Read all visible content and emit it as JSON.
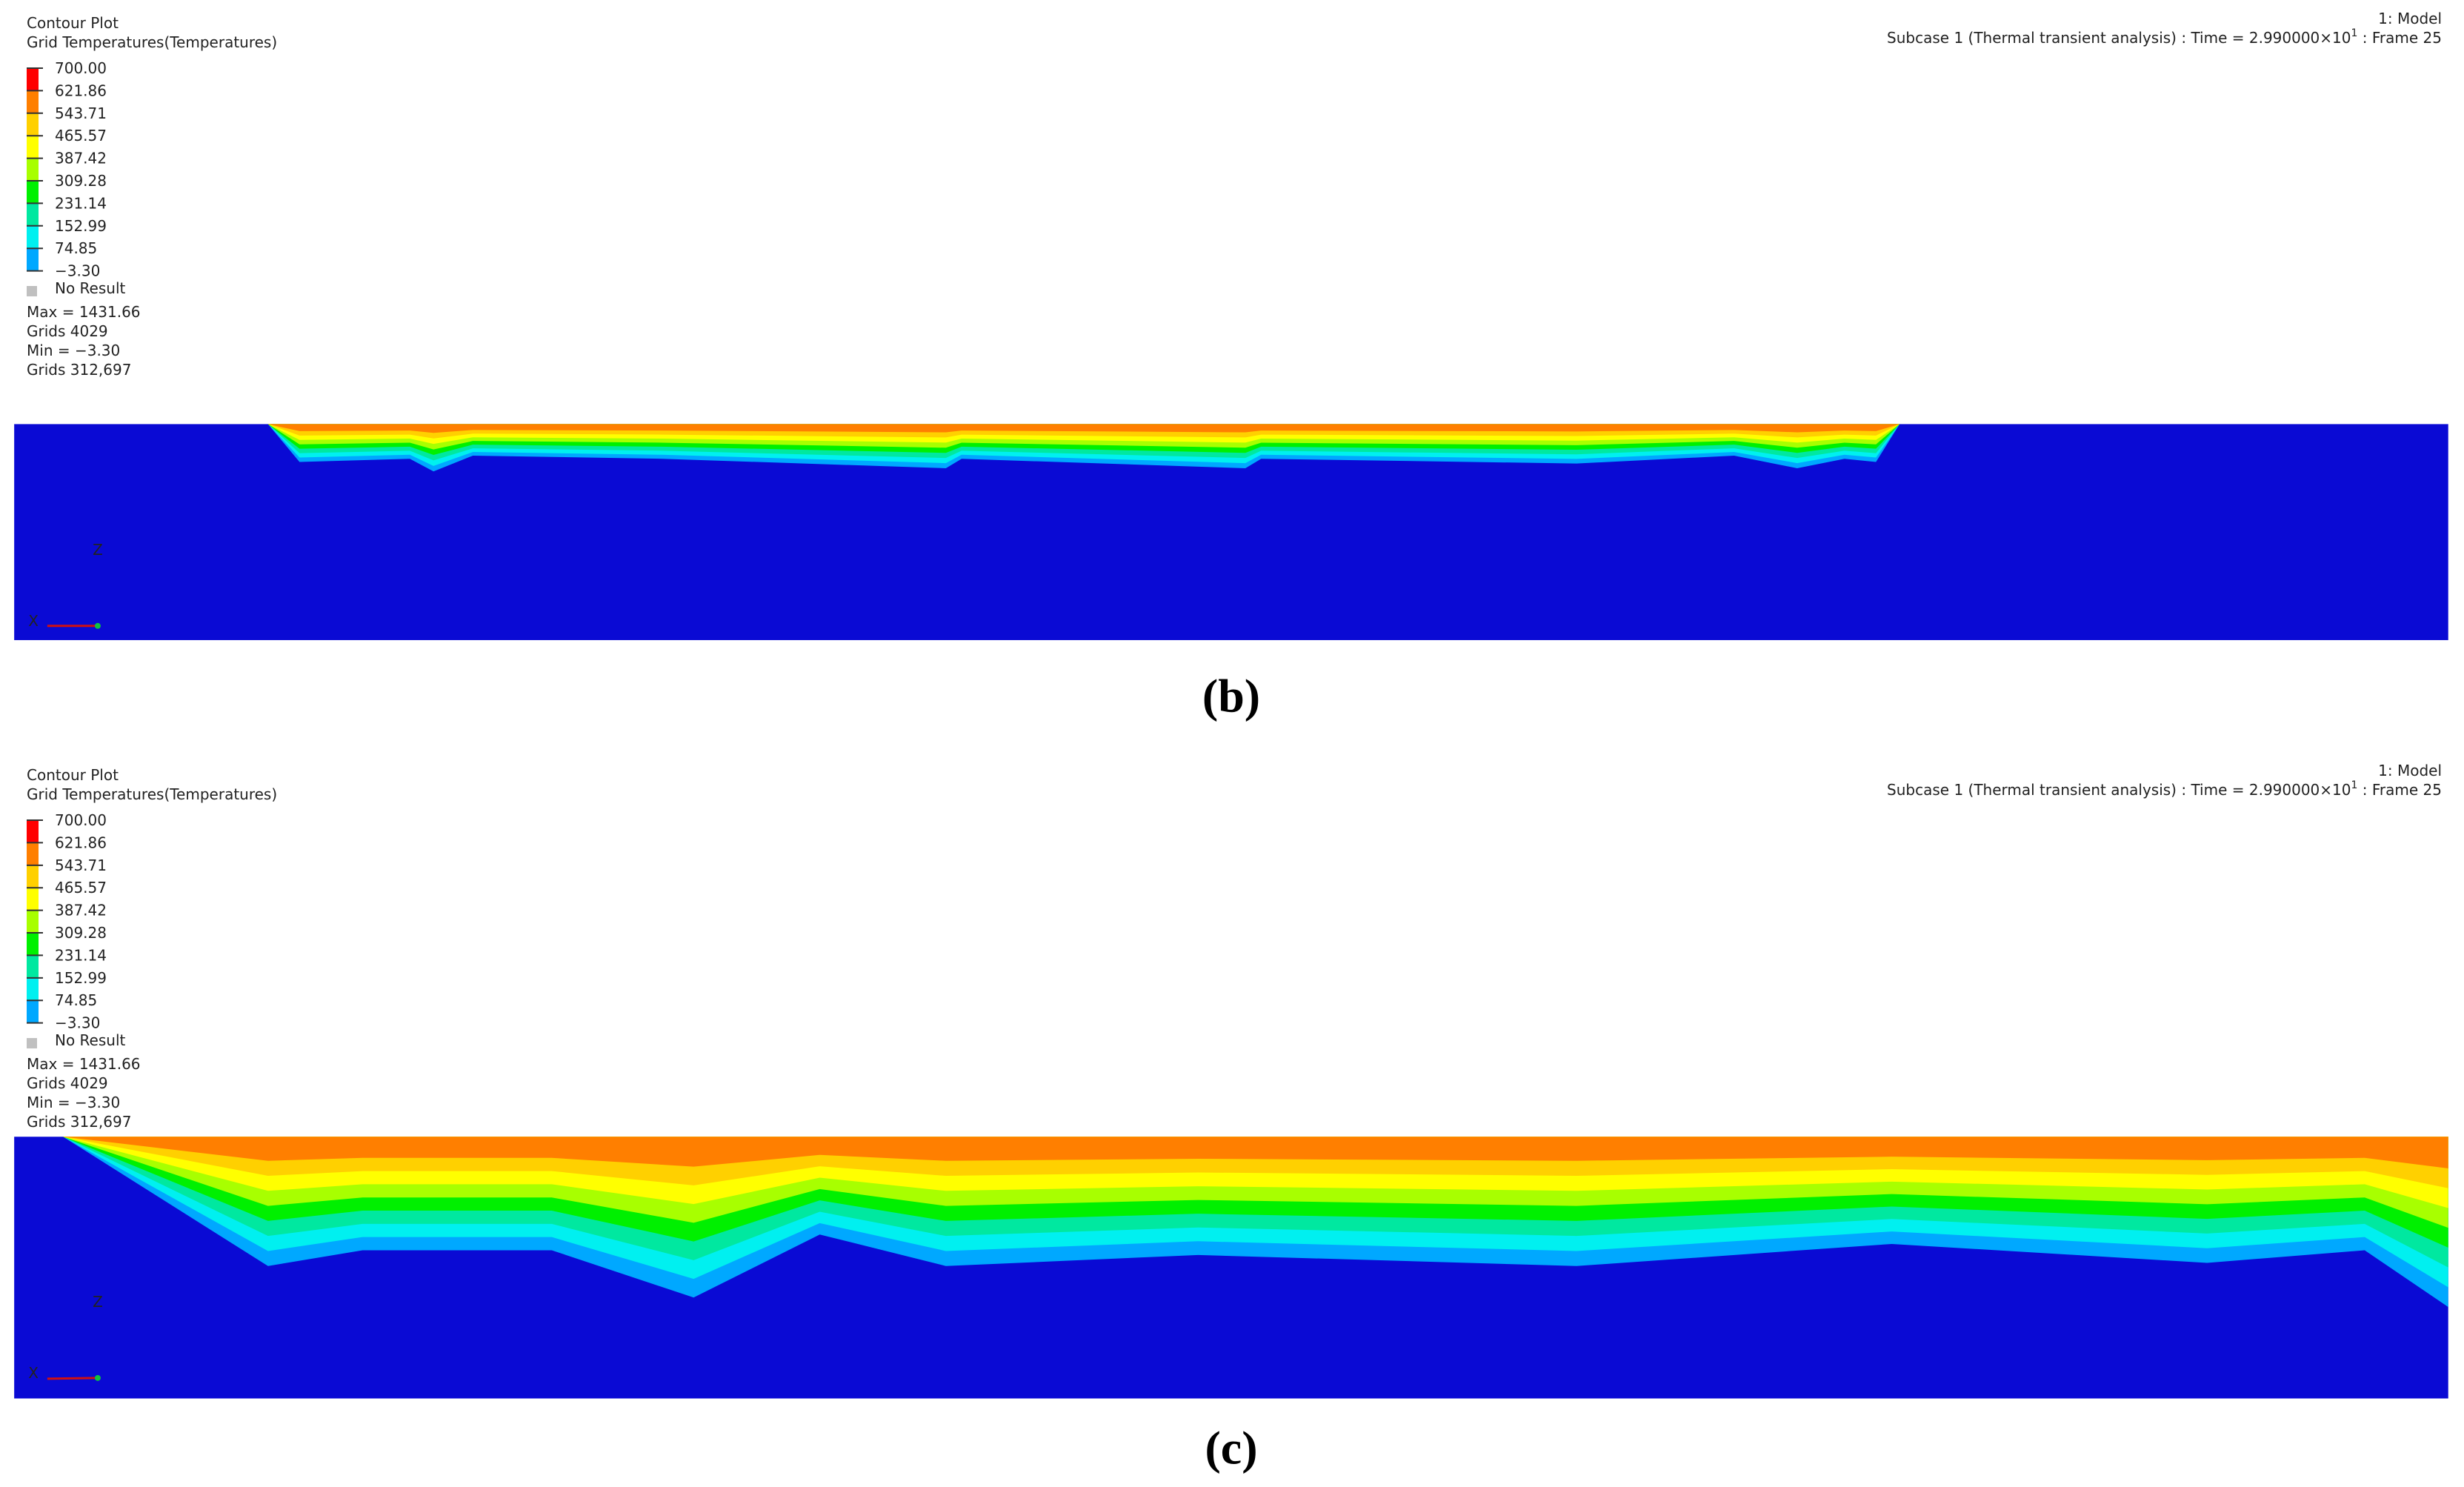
{
  "panels": [
    {
      "title": "Contour Plot",
      "subtitle": "Grid Temperatures(Temperatures)",
      "legend": [
        "700.00",
        "621.86",
        "543.71",
        "465.57",
        "387.42",
        "309.28",
        "231.14",
        "152.99",
        "74.85",
        "−3.30"
      ],
      "no_result": "No Result",
      "stats": [
        "Max = 1431.66",
        "Grids 4029",
        "Min = −3.30",
        "Grids 312,697"
      ],
      "model": "1: Model",
      "subcase": {
        "prefix": "Subcase 1 (Thermal transient analysis) : Time = 2.990000×10",
        "exponent": "1",
        "suffix": " : Frame 25"
      },
      "triad": {
        "z": "Z",
        "x": "X"
      },
      "label": "(b)"
    },
    {
      "title": "Contour Plot",
      "subtitle": "Grid Temperatures(Temperatures)",
      "legend": [
        "700.00",
        "621.86",
        "543.71",
        "465.57",
        "387.42",
        "309.28",
        "231.14",
        "152.99",
        "74.85",
        "−3.30"
      ],
      "no_result": "No Result",
      "stats": [
        "Max = 1431.66",
        "Grids 4029",
        "Min = −3.30",
        "Grids 312,697"
      ],
      "model": "1: Model",
      "subcase": {
        "prefix": "Subcase 1 (Thermal transient analysis) : Time = 2.990000×10",
        "exponent": "1",
        "suffix": " : Frame 25"
      },
      "triad": {
        "z": "Z",
        "x": "X"
      },
      "label": "(c)"
    }
  ]
}
